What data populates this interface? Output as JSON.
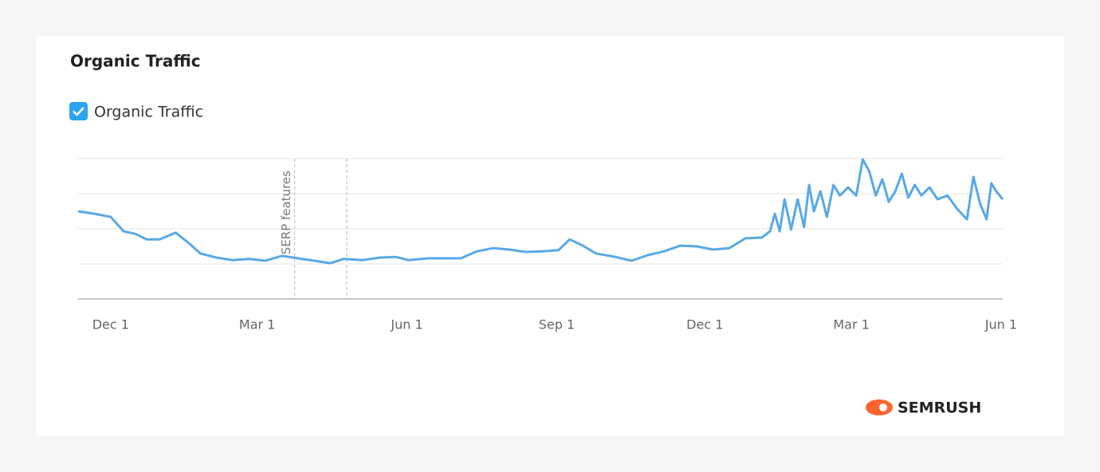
{
  "chart_data": {
    "type": "line",
    "title": "Organic Traffic",
    "xlim": [
      -20,
      548
    ],
    "ylim": [
      0,
      4
    ],
    "yticks": [
      0,
      1,
      2,
      3,
      4
    ],
    "grid": true,
    "xticks": [
      {
        "value": 0,
        "label": "Dec 1"
      },
      {
        "value": 90,
        "label": "Mar 1"
      },
      {
        "value": 182,
        "label": "Jun 1"
      },
      {
        "value": 274,
        "label": "Sep 1"
      },
      {
        "value": 365,
        "label": "Dec 1"
      },
      {
        "value": 455,
        "label": "Mar 1"
      },
      {
        "value": 547,
        "label": "Jun 1"
      }
    ],
    "annotation": {
      "text": "SERP features",
      "x": [
        113,
        145
      ]
    },
    "brand": "SEMRUSH",
    "x": [
      -20,
      -10,
      0,
      8,
      15,
      22,
      30,
      40,
      48,
      55,
      65,
      75,
      85,
      95,
      105,
      115,
      125,
      135,
      143,
      155,
      165,
      175,
      183,
      195,
      205,
      215,
      225,
      235,
      245,
      255,
      265,
      275,
      282,
      290,
      298,
      310,
      320,
      330,
      340,
      350,
      360,
      370,
      380,
      390,
      400,
      405,
      408,
      411,
      414,
      418,
      422,
      426,
      429,
      432,
      436,
      440,
      444,
      448,
      453,
      458,
      462,
      466,
      470,
      474,
      478,
      482,
      486,
      490,
      494,
      498,
      503,
      508,
      514,
      520,
      526,
      530,
      534,
      538,
      541,
      544,
      548
    ],
    "series": [
      {
        "name": "Organic Traffic",
        "color": "#58a9e6",
        "values": [
          2.5,
          2.43,
          2.34,
          1.93,
          1.86,
          1.7,
          1.7,
          1.89,
          1.59,
          1.3,
          1.18,
          1.11,
          1.14,
          1.09,
          1.23,
          1.16,
          1.09,
          1.02,
          1.14,
          1.11,
          1.18,
          1.2,
          1.11,
          1.16,
          1.16,
          1.16,
          1.36,
          1.45,
          1.41,
          1.34,
          1.36,
          1.39,
          1.7,
          1.52,
          1.3,
          1.2,
          1.09,
          1.25,
          1.36,
          1.52,
          1.5,
          1.41,
          1.45,
          1.73,
          1.75,
          1.93,
          2.43,
          1.93,
          2.84,
          1.98,
          2.84,
          2.05,
          3.25,
          2.5,
          3.07,
          2.34,
          3.25,
          2.95,
          3.18,
          2.95,
          3.98,
          3.64,
          2.95,
          3.41,
          2.77,
          3.07,
          3.57,
          2.89,
          3.25,
          2.95,
          3.18,
          2.84,
          2.95,
          2.57,
          2.27,
          3.48,
          2.73,
          2.27,
          3.3,
          3.07,
          2.84
        ]
      }
    ]
  }
}
